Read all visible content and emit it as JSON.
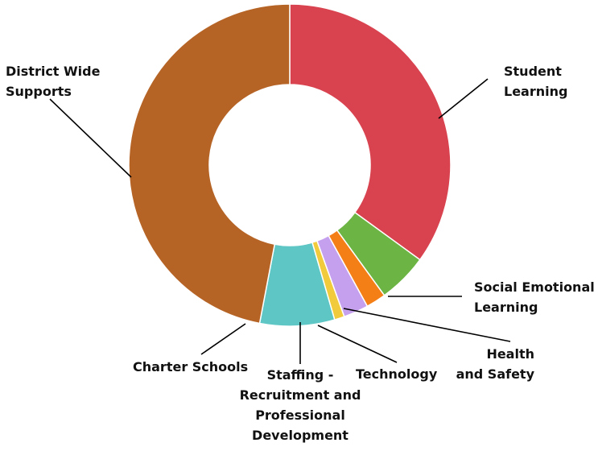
{
  "chart_data": {
    "type": "pie",
    "variant": "donut",
    "legend": "none",
    "slices": [
      {
        "label": "Student Learning",
        "value": 35.0,
        "color": "#d9434f"
      },
      {
        "label": "Social Emotional Learning",
        "value": 5.0,
        "color": "#6cb544"
      },
      {
        "label": "Health and Safety",
        "value": 2.0,
        "color": "#f57f17"
      },
      {
        "label": "Technology",
        "value": 2.5,
        "color": "#c5a0ef"
      },
      {
        "label": "Staffing - Recruitment and Professional Development",
        "value": 1.0,
        "color": "#f2cb3d"
      },
      {
        "label": "Charter Schools",
        "value": 7.5,
        "color": "#5ec6c4"
      },
      {
        "label": "District Wide Supports",
        "value": 47.0,
        "color": "#b66426"
      }
    ],
    "label_lines": {
      "Student Learning": [
        "Student",
        "Learning"
      ],
      "Social Emotional Learning": [
        "Social Emotional",
        "Learning"
      ],
      "Health and Safety": [
        "Health",
        "and Safety"
      ],
      "Technology": [
        "Technology"
      ],
      "Staffing - Recruitment and Professional Development": [
        "Staffing -",
        "Recruitment and",
        "Professional",
        "Development"
      ],
      "Charter Schools": [
        "Charter Schools"
      ],
      "District Wide Supports": [
        "District Wide",
        "Supports"
      ]
    }
  }
}
